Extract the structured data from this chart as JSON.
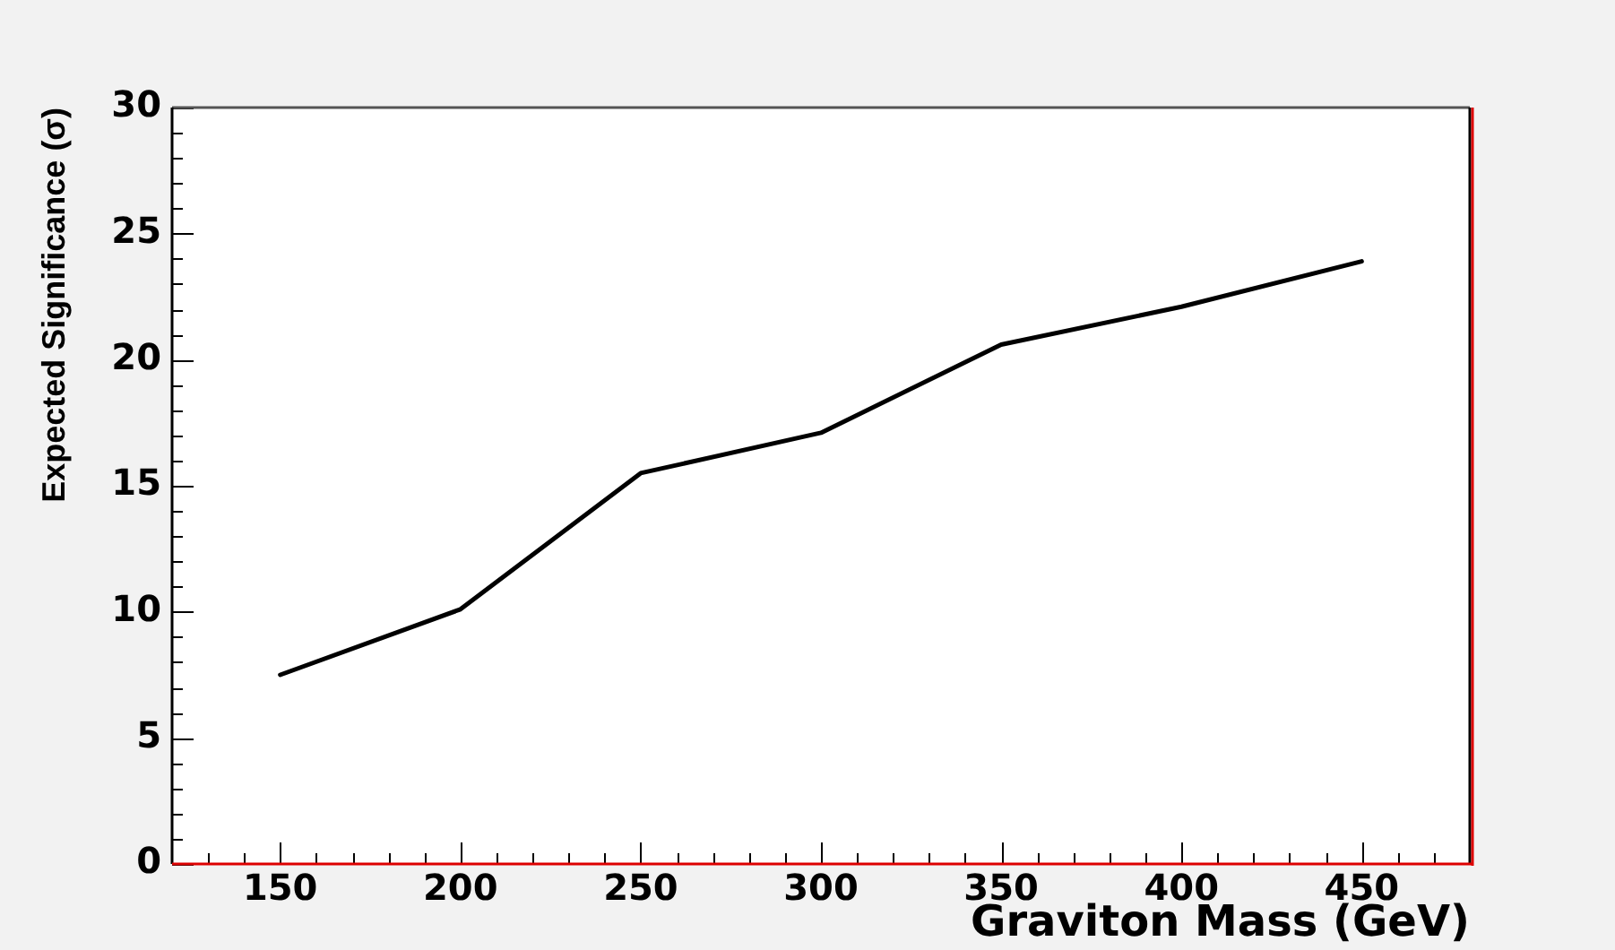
{
  "chart_data": {
    "type": "line",
    "xlabel": "Graviton Mass (GeV)",
    "ylabel": "Expected Significance (σ)",
    "x": [
      150,
      200,
      250,
      300,
      350,
      400,
      450
    ],
    "values": [
      7.5,
      10.1,
      15.5,
      17.1,
      20.6,
      22.1,
      23.9
    ],
    "color": "#000000",
    "xlim": [
      120,
      480
    ],
    "xticks": [
      {
        "value": 130,
        "label": null
      },
      {
        "value": 140,
        "label": null
      },
      150,
      {
        "value": 160,
        "label": null
      },
      {
        "value": 170,
        "label": null
      },
      {
        "value": 180,
        "label": null
      },
      {
        "value": 190,
        "label": null
      },
      200,
      {
        "value": 210,
        "label": null
      },
      {
        "value": 220,
        "label": null
      },
      {
        "value": 230,
        "label": null
      },
      {
        "value": 240,
        "label": null
      },
      250,
      {
        "value": 260,
        "label": null
      },
      {
        "value": 270,
        "label": null
      },
      {
        "value": 280,
        "label": null
      },
      {
        "value": 290,
        "label": null
      },
      300,
      {
        "value": 310,
        "label": null
      },
      {
        "value": 320,
        "label": null
      },
      {
        "value": 330,
        "label": null
      },
      {
        "value": 340,
        "label": null
      },
      350,
      {
        "value": 360,
        "label": null
      },
      {
        "value": 370,
        "label": null
      },
      {
        "value": 380,
        "label": null
      },
      {
        "value": 390,
        "label": null
      },
      400,
      {
        "value": 410,
        "label": null
      },
      {
        "value": 420,
        "label": null
      },
      {
        "value": 430,
        "label": null
      },
      {
        "value": 440,
        "label": null
      },
      450,
      {
        "value": 460,
        "label": null
      },
      {
        "value": 470,
        "label": null
      }
    ],
    "ylim": [
      0,
      30
    ],
    "yticks": [
      0,
      {
        "value": 1,
        "label": null
      },
      {
        "value": 2,
        "label": null
      },
      {
        "value": 3,
        "label": null
      },
      {
        "value": 4,
        "label": null
      },
      5,
      {
        "value": 6,
        "label": null
      },
      {
        "value": 7,
        "label": null
      },
      {
        "value": 8,
        "label": null
      },
      {
        "value": 9,
        "label": null
      },
      10,
      {
        "value": 11,
        "label": null
      },
      {
        "value": 12,
        "label": null
      },
      {
        "value": 13,
        "label": null
      },
      {
        "value": 14,
        "label": null
      },
      15,
      {
        "value": 16,
        "label": null
      },
      {
        "value": 17,
        "label": null
      },
      {
        "value": 18,
        "label": null
      },
      {
        "value": 19,
        "label": null
      },
      20,
      {
        "value": 21,
        "label": null
      },
      {
        "value": 22,
        "label": null
      },
      {
        "value": 23,
        "label": null
      },
      {
        "value": 24,
        "label": null
      },
      25,
      {
        "value": 26,
        "label": null
      },
      {
        "value": 27,
        "label": null
      },
      {
        "value": 28,
        "label": null
      },
      {
        "value": 29,
        "label": null
      },
      30
    ],
    "grid": false,
    "legend": false,
    "marker": "none",
    "line_style": "solid"
  }
}
